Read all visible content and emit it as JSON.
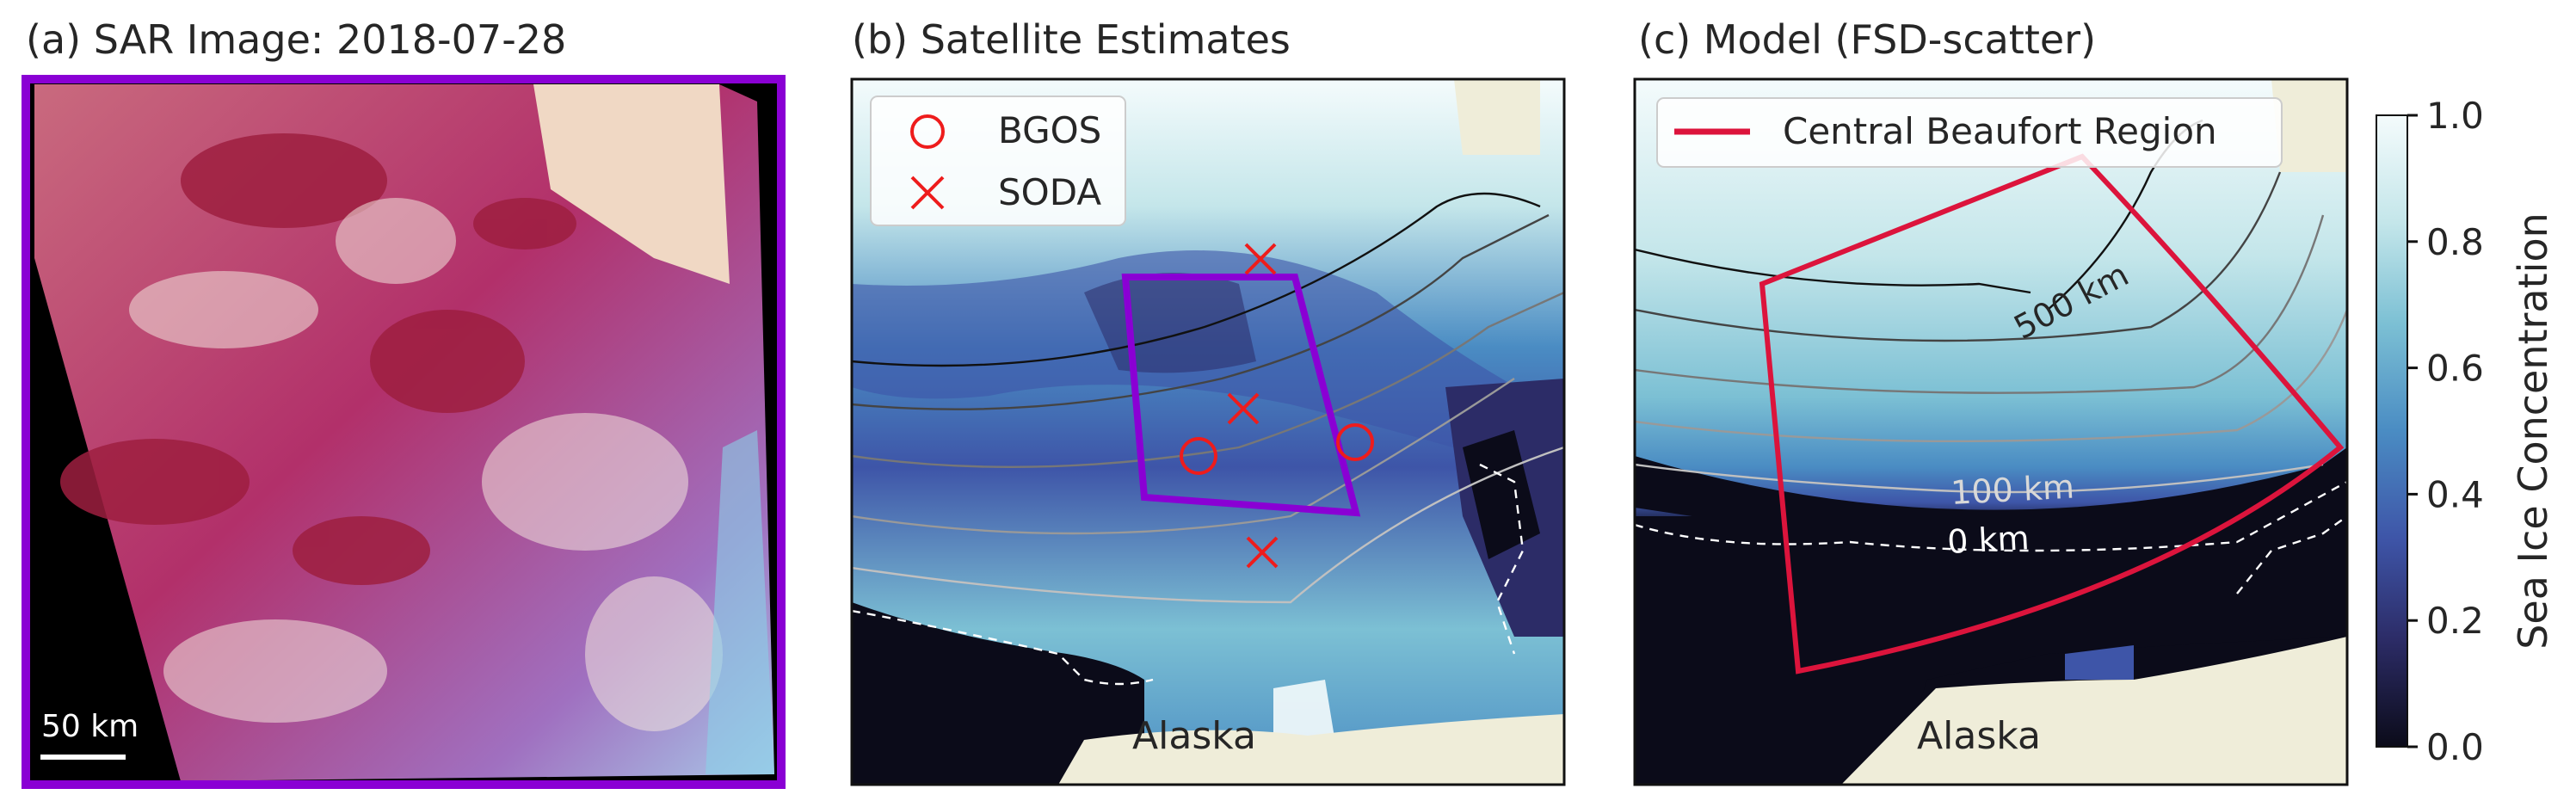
{
  "panels": {
    "a": {
      "title": "(a)  SAR Image: 2018-07-28",
      "scalebar": "50 km"
    },
    "b": {
      "title": "(b) Satellite Estimates",
      "region_label": "Alaska",
      "legend": [
        {
          "marker": "circle",
          "label": "BGOS"
        },
        {
          "marker": "x",
          "label": "SODA"
        }
      ]
    },
    "c": {
      "title": "(c) Model (FSD-scatter)",
      "region_label": "Alaska",
      "legend": [
        {
          "marker": "line",
          "label": "Central Beaufort Region"
        }
      ],
      "contour_labels": [
        "500 km",
        "100 km",
        "0 km"
      ]
    }
  },
  "colors": {
    "frame_purple": "#8a00d4",
    "region_red": "#dc143c",
    "marker_red": "#ee1c1c",
    "land": "#efedd9",
    "ocean_dark": "#0b0b19"
  },
  "chart_data": {
    "type": "heatmap",
    "colorbar": {
      "label": "Sea Ice Concentration",
      "range": [
        0.0,
        1.0
      ],
      "ticks": [
        0.0,
        0.2,
        0.4,
        0.6,
        0.8,
        1.0
      ],
      "tick_labels": [
        "0.0",
        "0.2",
        "0.4",
        "0.6",
        "0.8",
        "1.0"
      ],
      "colormap": [
        "#0b0b19",
        "#2c2c67",
        "#3e55a8",
        "#4a8cc3",
        "#7cc0d4",
        "#c4e6ea",
        "#f4fbfc"
      ]
    }
  }
}
